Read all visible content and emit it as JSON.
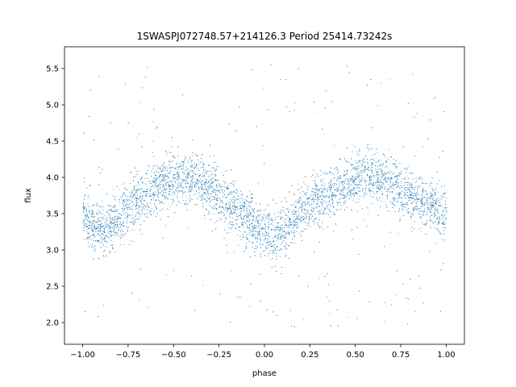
{
  "chart_data": {
    "type": "scatter",
    "title": "1SWASPJ072748.57+214126.3 Period 25414.73242s",
    "xlabel": "phase",
    "ylabel": "flux",
    "xlim": [
      -1.1,
      1.1
    ],
    "ylim": [
      1.7,
      5.8
    ],
    "xticks": [
      -1.0,
      -0.75,
      -0.5,
      -0.25,
      0.0,
      0.25,
      0.5,
      0.75,
      1.0
    ],
    "xtick_labels": [
      "−1.00",
      "−0.75",
      "−0.50",
      "−0.25",
      "0.00",
      "0.25",
      "0.50",
      "0.75",
      "1.00"
    ],
    "yticks": [
      2.0,
      2.5,
      3.0,
      3.5,
      4.0,
      4.5,
      5.0,
      5.5
    ],
    "ytick_labels": [
      "2.0",
      "2.5",
      "3.0",
      "3.5",
      "4.0",
      "4.5",
      "5.0",
      "5.5"
    ],
    "grid": false,
    "marker_color": "#1f77b4",
    "series": [
      {
        "phase": [
          -1.0,
          -0.95,
          -0.9,
          -0.85,
          -0.8,
          -0.75,
          -0.7,
          -0.65,
          -0.6,
          -0.55,
          -0.5,
          -0.45,
          -0.4,
          -0.35,
          -0.3,
          -0.25,
          -0.2,
          -0.15,
          -0.1,
          -0.05,
          0.0,
          0.05,
          0.1,
          0.15,
          0.2,
          0.25,
          0.3,
          0.35,
          0.4,
          0.45,
          0.5,
          0.55,
          0.6,
          0.65,
          0.7,
          0.75,
          0.8,
          0.85,
          0.9,
          0.95,
          1.0
        ],
        "flux": [
          3.45,
          3.35,
          3.28,
          3.35,
          3.48,
          3.6,
          3.7,
          3.78,
          3.85,
          3.92,
          3.97,
          4.0,
          3.98,
          3.93,
          3.85,
          3.75,
          3.65,
          3.55,
          3.45,
          3.35,
          3.25,
          3.2,
          3.25,
          3.4,
          3.55,
          3.65,
          3.72,
          3.78,
          3.84,
          3.9,
          3.96,
          4.0,
          4.0,
          3.97,
          3.9,
          3.82,
          3.75,
          3.7,
          3.65,
          3.58,
          3.5
        ],
        "scatter_sigma": 0.18,
        "outlier_range": [
          1.9,
          5.6
        ]
      }
    ]
  }
}
